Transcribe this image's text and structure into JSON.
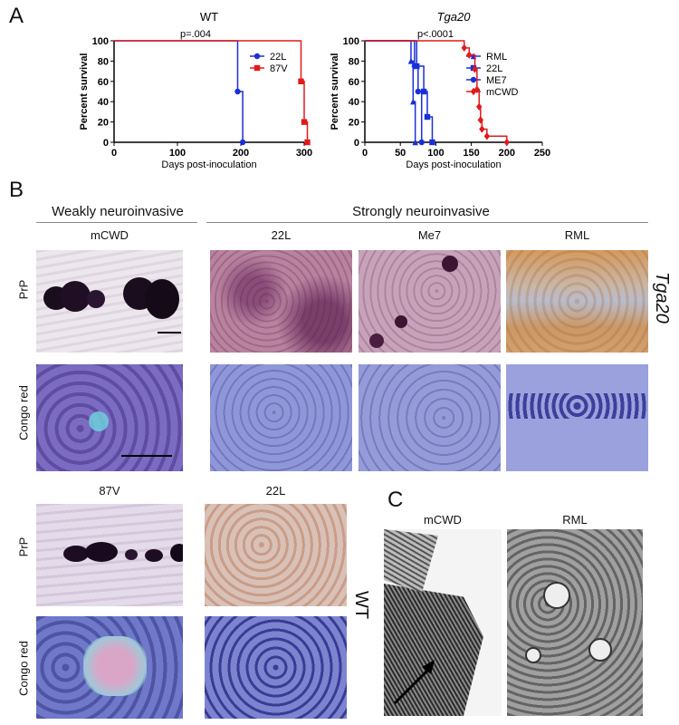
{
  "panels": {
    "a": "A",
    "b": "B",
    "c": "C"
  },
  "chart_data": [
    {
      "type": "line",
      "title": "WT",
      "xlabel": "Days post-inoculation",
      "ylabel": "Percent survival",
      "xlim": [
        0,
        300
      ],
      "ylim": [
        0,
        100
      ],
      "xticks": [
        "0",
        "100",
        "200",
        "300"
      ],
      "yticks": [
        "0",
        "20",
        "40",
        "60",
        "80",
        "100"
      ],
      "annotation": "p=.004",
      "legend": "right",
      "series": [
        {
          "name": "22L",
          "color": "#1a2fd6",
          "marker": "circle",
          "steps": [
            [
              0,
              100
            ],
            [
              195,
              100
            ],
            [
              195,
              50
            ],
            [
              203,
              50
            ],
            [
              203,
              0
            ]
          ],
          "points": [
            [
              195,
              50
            ],
            [
              203,
              0
            ]
          ]
        },
        {
          "name": "87V",
          "color": "#e01b1b",
          "marker": "square",
          "steps": [
            [
              0,
              100
            ],
            [
              295,
              100
            ],
            [
              295,
              60
            ],
            [
              300,
              60
            ],
            [
              300,
              20
            ],
            [
              305,
              20
            ],
            [
              305,
              0
            ]
          ],
          "points": [
            [
              295,
              60
            ],
            [
              300,
              20
            ],
            [
              305,
              0
            ]
          ]
        }
      ]
    },
    {
      "type": "line",
      "title": "Tga20",
      "xlabel": "Days post-inoculation",
      "ylabel": "Percent survival",
      "xlim": [
        0,
        250
      ],
      "ylim": [
        0,
        100
      ],
      "xticks": [
        "0",
        "50",
        "100",
        "150",
        "200",
        "250"
      ],
      "yticks": [
        "0",
        "20",
        "40",
        "60",
        "80",
        "100"
      ],
      "annotation": "p<.0001",
      "legend": "right",
      "series": [
        {
          "name": "RML",
          "color": "#1a2fd6",
          "marker": "triangle",
          "steps": [
            [
              0,
              100
            ],
            [
              65,
              100
            ],
            [
              65,
              80
            ],
            [
              68,
              80
            ],
            [
              68,
              40
            ],
            [
              71,
              40
            ],
            [
              71,
              0
            ]
          ],
          "points": [
            [
              65,
              80
            ],
            [
              68,
              40
            ],
            [
              71,
              0
            ]
          ]
        },
        {
          "name": "22L",
          "color": "#1a2fd6",
          "marker": "square",
          "steps": [
            [
              0,
              100
            ],
            [
              73,
              100
            ],
            [
              73,
              75
            ],
            [
              83,
              75
            ],
            [
              83,
              50
            ],
            [
              88,
              50
            ],
            [
              88,
              25
            ],
            [
              95,
              25
            ],
            [
              95,
              0
            ]
          ],
          "points": [
            [
              73,
              75
            ],
            [
              83,
              50
            ],
            [
              88,
              25
            ],
            [
              95,
              0
            ]
          ]
        },
        {
          "name": "ME7",
          "color": "#1a2fd6",
          "marker": "circle",
          "steps": [
            [
              0,
              100
            ],
            [
              70,
              100
            ],
            [
              70,
              75
            ],
            [
              75,
              75
            ],
            [
              75,
              50
            ],
            [
              80,
              50
            ],
            [
              80,
              0
            ]
          ],
          "points": [
            [
              70,
              75
            ],
            [
              75,
              50
            ],
            [
              80,
              0
            ]
          ]
        },
        {
          "name": "mCWD",
          "color": "#e01b1b",
          "marker": "diamond",
          "steps": [
            [
              0,
              100
            ],
            [
              140,
              100
            ],
            [
              140,
              93
            ],
            [
              147,
              93
            ],
            [
              147,
              86
            ],
            [
              155,
              86
            ],
            [
              155,
              72
            ],
            [
              158,
              72
            ],
            [
              158,
              52
            ],
            [
              161,
              52
            ],
            [
              161,
              35
            ],
            [
              163,
              35
            ],
            [
              163,
              22
            ],
            [
              165,
              22
            ],
            [
              165,
              13
            ],
            [
              172,
              13
            ],
            [
              172,
              6
            ],
            [
              200,
              6
            ],
            [
              200,
              0
            ]
          ],
          "points": [
            [
              140,
              93
            ],
            [
              147,
              86
            ],
            [
              155,
              72
            ],
            [
              158,
              52
            ],
            [
              161,
              35
            ],
            [
              163,
              22
            ],
            [
              165,
              13
            ],
            [
              172,
              6
            ],
            [
              200,
              0
            ]
          ]
        }
      ]
    }
  ],
  "section_b": {
    "weak_header": "Weakly neuroinvasive",
    "strong_header": "Strongly neuroinvasive",
    "col_mcwd": "mCWD",
    "col_22l": "22L",
    "col_me7": "Me7",
    "col_rml": "RML",
    "row_prp": "PrP",
    "row_congo": "Congo red",
    "tga_label": "Tga20",
    "col_87v": "87V",
    "col_22l_wt": "22L",
    "row_prp_wt": "PrP",
    "row_congo_wt": "Congo red",
    "wt_label": "WT"
  },
  "section_c": {
    "col_mcwd": "mCWD",
    "col_rml": "RML"
  }
}
